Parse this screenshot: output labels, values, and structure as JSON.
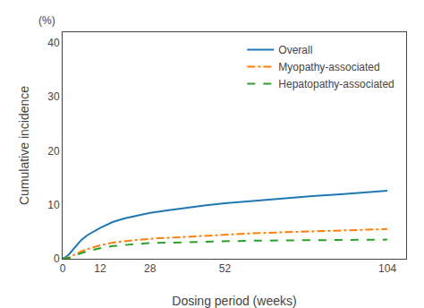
{
  "chart_data": {
    "type": "line",
    "xlabel": "Dosing period (weeks)",
    "ylabel": "Cumulative incidence",
    "annotations": [
      {
        "text": "(%)"
      }
    ],
    "x": [
      0,
      1,
      2,
      3,
      4,
      5,
      6,
      8,
      10,
      12,
      16,
      20,
      24,
      28,
      34,
      40,
      46,
      52,
      60,
      70,
      80,
      90,
      100,
      104
    ],
    "series": [
      {
        "name": "Overall",
        "line_style": "solid",
        "values": [
          0,
          0.3,
          0.8,
          1.5,
          2.2,
          2.9,
          3.5,
          4.4,
          5.1,
          5.7,
          6.8,
          7.5,
          8.0,
          8.5,
          9.0,
          9.5,
          9.9,
          10.3,
          10.7,
          11.2,
          11.6,
          12.0,
          12.4,
          12.6
        ]
      },
      {
        "name": "Myopathy-associated",
        "line_style": "dashdot",
        "values": [
          0,
          0.05,
          0.2,
          0.5,
          0.8,
          1.1,
          1.4,
          1.8,
          2.2,
          2.5,
          3.0,
          3.3,
          3.5,
          3.7,
          3.9,
          4.1,
          4.3,
          4.5,
          4.7,
          4.9,
          5.1,
          5.3,
          5.4,
          5.5
        ]
      },
      {
        "name": "Hepatopathy-associated",
        "line_style": "dashed",
        "values": [
          0,
          0.05,
          0.15,
          0.3,
          0.55,
          0.8,
          1.05,
          1.4,
          1.7,
          1.95,
          2.35,
          2.6,
          2.75,
          2.9,
          3.0,
          3.1,
          3.2,
          3.3,
          3.35,
          3.4,
          3.45,
          3.5,
          3.52,
          3.55
        ]
      }
    ],
    "xlim": [
      0,
      110
    ],
    "xticks": [
      0,
      12,
      28,
      52,
      104
    ],
    "ylim": [
      0,
      42
    ],
    "yticks": [
      0,
      10,
      20,
      30,
      40
    ],
    "grid": false,
    "legend": "upper right"
  }
}
